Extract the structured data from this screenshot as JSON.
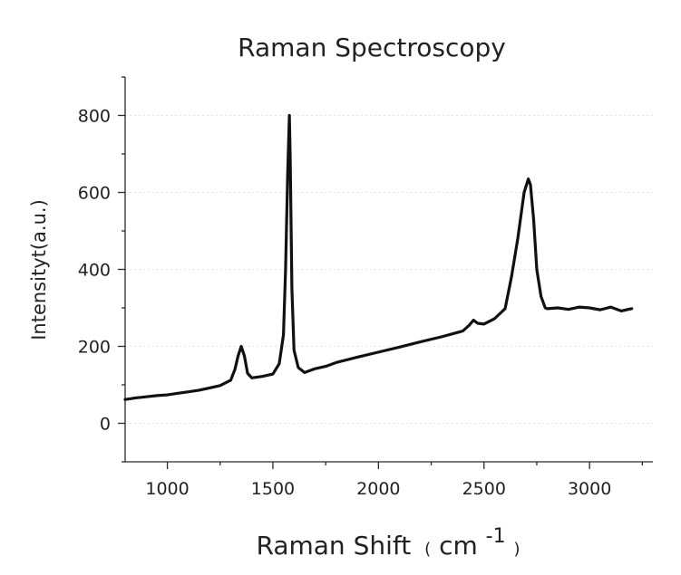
{
  "chart_data": {
    "type": "line",
    "title": "Raman Spectroscopy",
    "xlabel": "Raman Shift",
    "xlabel_unit_open": "(",
    "xlabel_unit": "cm",
    "xlabel_unit_exp": "-1",
    "xlabel_unit_close": ")",
    "ylabel": "Intensityt(a.u.)",
    "xlim": [
      800,
      3300
    ],
    "ylim": [
      -100,
      900
    ],
    "xticks": [
      1000,
      1500,
      2000,
      2500,
      3000
    ],
    "yticks": [
      0,
      200,
      400,
      600,
      800
    ],
    "xtick_labels": [
      "1000",
      "1500",
      "2000",
      "2500",
      "3000"
    ],
    "ytick_labels": [
      "0",
      "200",
      "400",
      "600",
      "800"
    ],
    "grid": "horizontal",
    "colors": {
      "line": "#111111",
      "grid": "#e4e4e4",
      "axis": "#2a2a2a"
    },
    "series": [
      {
        "x": [
          800,
          850,
          900,
          950,
          1000,
          1050,
          1100,
          1150,
          1200,
          1250,
          1300,
          1320,
          1335,
          1350,
          1365,
          1380,
          1400,
          1450,
          1500,
          1530,
          1550,
          1560,
          1570,
          1578,
          1582,
          1590,
          1600,
          1620,
          1650,
          1700,
          1750,
          1800,
          1900,
          2000,
          2100,
          2200,
          2300,
          2400,
          2430,
          2450,
          2470,
          2500,
          2550,
          2600,
          2630,
          2660,
          2690,
          2710,
          2720,
          2735,
          2750,
          2770,
          2790,
          2800,
          2850,
          2900,
          2950,
          3000,
          3050,
          3100,
          3150,
          3200
        ],
        "y": [
          62,
          66,
          69,
          72,
          74,
          78,
          82,
          86,
          92,
          98,
          112,
          140,
          175,
          200,
          175,
          130,
          118,
          122,
          128,
          155,
          230,
          400,
          650,
          800,
          690,
          350,
          190,
          145,
          132,
          142,
          148,
          158,
          172,
          185,
          198,
          212,
          225,
          240,
          255,
          268,
          260,
          258,
          272,
          298,
          380,
          480,
          600,
          635,
          620,
          530,
          400,
          330,
          300,
          298,
          300,
          296,
          302,
          300,
          295,
          302,
          292,
          298
        ]
      }
    ]
  }
}
